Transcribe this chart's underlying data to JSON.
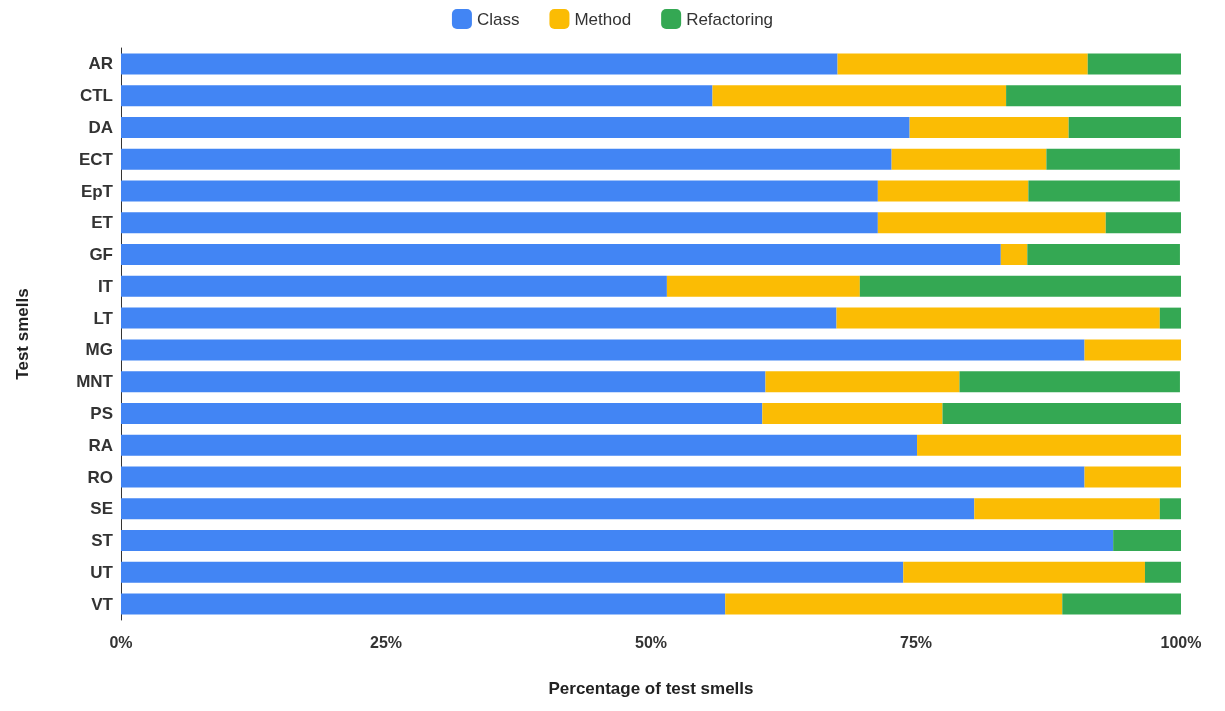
{
  "chart_data": {
    "type": "bar",
    "orientation": "horizontal",
    "stacked": true,
    "xlabel": "Percentage of test smells",
    "ylabel": "Test smells",
    "categories": [
      "AR",
      "CTL",
      "DA",
      "ECT",
      "EpT",
      "ET",
      "GF",
      "IT",
      "LT",
      "MG",
      "MNT",
      "PS",
      "RA",
      "RO",
      "SE",
      "ST",
      "UT",
      "VT"
    ],
    "series": [
      {
        "name": "Class",
        "color": "#4285f4",
        "values": [
          67.6,
          55.8,
          74.4,
          72.7,
          71.4,
          71.4,
          83.0,
          51.5,
          67.5,
          90.9,
          60.8,
          60.5,
          75.1,
          90.9,
          80.5,
          93.6,
          73.8,
          57.0
        ]
      },
      {
        "name": "Method",
        "color": "#fbbc04",
        "values": [
          23.6,
          27.7,
          15.0,
          14.6,
          14.2,
          21.5,
          2.5,
          18.2,
          30.5,
          9.1,
          18.3,
          17.0,
          24.9,
          9.1,
          17.5,
          0,
          22.8,
          31.8
        ]
      },
      {
        "name": "Refactoring",
        "color": "#34a853",
        "values": [
          8.8,
          16.5,
          10.6,
          12.6,
          14.3,
          7.1,
          14.4,
          30.3,
          2.0,
          0,
          20.8,
          22.5,
          0,
          0,
          2.0,
          6.4,
          3.4,
          11.2
        ]
      }
    ],
    "xlim": [
      0,
      100
    ],
    "xticks": [
      {
        "value": 0,
        "label": "0%"
      },
      {
        "value": 25,
        "label": "25%"
      },
      {
        "value": 50,
        "label": "50%"
      },
      {
        "value": 75,
        "label": "75%"
      },
      {
        "value": 100,
        "label": "100%"
      }
    ],
    "legend": "top",
    "grid": false
  }
}
